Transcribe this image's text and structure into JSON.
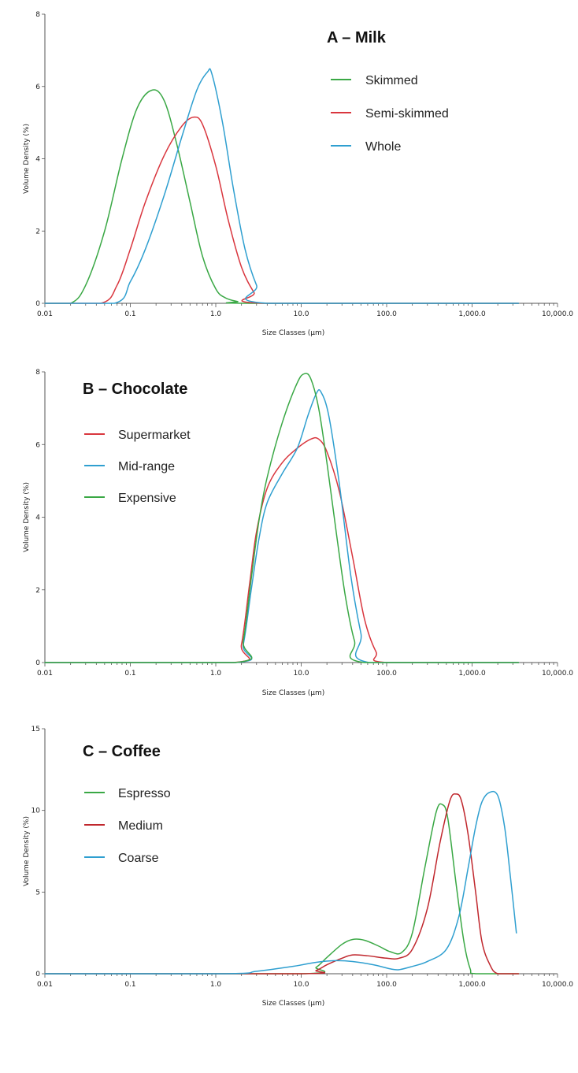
{
  "chart_data": [
    {
      "type": "line",
      "title": "A – Milk",
      "xlabel": "Size Classes (µm)",
      "ylabel": "Volume Density (%)",
      "xscale": "log",
      "xlim": [
        0.01,
        10000
      ],
      "ylim": [
        0,
        8
      ],
      "xticks": [
        "0.01",
        "0.1",
        "1.0",
        "10.0",
        "100.0",
        "1,000.0",
        "10,000.0"
      ],
      "yticks": [
        "0",
        "2",
        "4",
        "6",
        "8"
      ],
      "legend_position": "top-right",
      "series": [
        {
          "name": "Skimmed",
          "color": "#3aa845",
          "x": [
            0.01,
            0.02,
            0.03,
            0.05,
            0.08,
            0.12,
            0.18,
            0.25,
            0.35,
            0.5,
            0.7,
            1.0,
            1.3,
            1.8,
            2.5,
            3500
          ],
          "y": [
            0,
            0,
            0.5,
            2.0,
            4.0,
            5.4,
            5.9,
            5.6,
            4.4,
            2.8,
            1.3,
            0.4,
            0.15,
            0.05,
            0,
            0
          ]
        },
        {
          "name": "Semi-skimmed",
          "color": "#d9363e",
          "x": [
            0.01,
            0.045,
            0.07,
            0.1,
            0.15,
            0.25,
            0.4,
            0.55,
            0.7,
            1.0,
            1.4,
            2.0,
            2.8,
            3.6,
            3500
          ],
          "y": [
            0,
            0,
            0.5,
            1.5,
            2.8,
            4.1,
            4.9,
            5.15,
            4.95,
            3.8,
            2.3,
            1.0,
            0.3,
            0,
            0
          ]
        },
        {
          "name": "Whole",
          "color": "#2f9fd0",
          "x": [
            0.01,
            0.065,
            0.1,
            0.15,
            0.25,
            0.4,
            0.6,
            0.8,
            0.9,
            1.2,
            1.6,
            2.2,
            3.0,
            4.0,
            3500
          ],
          "y": [
            0,
            0,
            0.6,
            1.5,
            3.0,
            4.6,
            5.9,
            6.4,
            6.35,
            5.0,
            3.2,
            1.5,
            0.5,
            0,
            0
          ]
        }
      ]
    },
    {
      "type": "line",
      "title": "B – Chocolate",
      "xlabel": "Size Classes (µm)",
      "ylabel": "Volume Density (%)",
      "xscale": "log",
      "xlim": [
        0.01,
        10000
      ],
      "ylim": [
        0,
        8
      ],
      "xticks": [
        "0.01",
        "0.1",
        "1.0",
        "10.0",
        "100.0",
        "1,000.0",
        "10,000.0"
      ],
      "yticks": [
        "0",
        "2",
        "4",
        "6",
        "8"
      ],
      "legend_position": "top-left",
      "series": [
        {
          "name": "Supermarket",
          "color": "#d9363e",
          "x": [
            0.01,
            1.6,
            2.0,
            2.5,
            3.0,
            4.0,
            6.0,
            9.0,
            13,
            16,
            20,
            28,
            40,
            55,
            75,
            100,
            3500
          ],
          "y": [
            0,
            0,
            0.5,
            2.2,
            3.6,
            4.8,
            5.5,
            5.9,
            6.15,
            6.15,
            5.8,
            4.7,
            2.9,
            1.2,
            0.3,
            0,
            0
          ]
        },
        {
          "name": "Mid-range",
          "color": "#2f9fd0",
          "x": [
            0.01,
            1.7,
            2.1,
            2.6,
            3.2,
            4.0,
            6.0,
            9.0,
            12,
            15,
            17,
            21,
            28,
            38,
            50,
            62,
            3500
          ],
          "y": [
            0,
            0,
            0.5,
            2.0,
            3.4,
            4.4,
            5.2,
            5.9,
            6.8,
            7.4,
            7.45,
            6.8,
            4.9,
            2.4,
            0.8,
            0,
            0
          ]
        },
        {
          "name": "Expensive",
          "color": "#3aa845",
          "x": [
            0.01,
            1.7,
            2.1,
            2.6,
            3.2,
            4.0,
            6.0,
            9.0,
            11,
            13,
            16,
            20,
            26,
            33,
            42,
            55,
            3500
          ],
          "y": [
            0,
            0,
            0.6,
            2.3,
            3.9,
            5.1,
            6.6,
            7.7,
            7.95,
            7.8,
            7.0,
            5.5,
            3.5,
            1.8,
            0.6,
            0,
            0
          ]
        }
      ]
    },
    {
      "type": "line",
      "title": "C – Coffee",
      "xlabel": "Size Classes (µm)",
      "ylabel": "Volume Density (%)",
      "xscale": "log",
      "xlim": [
        0.01,
        10000
      ],
      "ylim": [
        0,
        15
      ],
      "xticks": [
        "0.01",
        "0.1",
        "1.0",
        "10.0",
        "100.0",
        "1,000.0",
        "10,000.0"
      ],
      "yticks": [
        "0",
        "5",
        "10",
        "15"
      ],
      "legend_position": "top-left",
      "series": [
        {
          "name": "Espresso",
          "color": "#3aa845",
          "x": [
            0.01,
            10,
            15,
            20,
            30,
            40,
            55,
            80,
            110,
            150,
            200,
            280,
            380,
            450,
            520,
            650,
            800,
            950,
            1100,
            3500
          ],
          "y": [
            0,
            0,
            0.4,
            1.0,
            1.8,
            2.1,
            2.05,
            1.7,
            1.35,
            1.3,
            2.5,
            6.5,
            9.9,
            10.35,
            9.5,
            5.5,
            2.0,
            0.3,
            0,
            0
          ]
        },
        {
          "name": "Medium",
          "color": "#c0272d",
          "x": [
            0.01,
            10,
            15,
            20,
            30,
            40,
            60,
            100,
            140,
            200,
            300,
            420,
            550,
            650,
            750,
            900,
            1100,
            1300,
            1600,
            2000,
            3500
          ],
          "y": [
            0,
            0,
            0.2,
            0.55,
            0.95,
            1.15,
            1.1,
            0.95,
            0.95,
            1.5,
            4.0,
            8.0,
            10.6,
            11.0,
            10.6,
            8.5,
            5.0,
            2.0,
            0.6,
            0,
            0
          ]
        },
        {
          "name": "Coarse",
          "color": "#2f9fd0",
          "x": [
            0.01,
            1.3,
            3.0,
            8.0,
            15,
            25,
            40,
            70,
            110,
            140,
            200,
            300,
            500,
            700,
            900,
            1100,
            1300,
            1600,
            2000,
            2400,
            2800,
            3300
          ],
          "y": [
            0,
            0,
            0.15,
            0.45,
            0.7,
            0.8,
            0.75,
            0.55,
            0.3,
            0.25,
            0.45,
            0.75,
            1.5,
            3.5,
            6.5,
            9.0,
            10.5,
            11.1,
            10.9,
            9.0,
            6.0,
            2.5
          ]
        }
      ]
    }
  ]
}
